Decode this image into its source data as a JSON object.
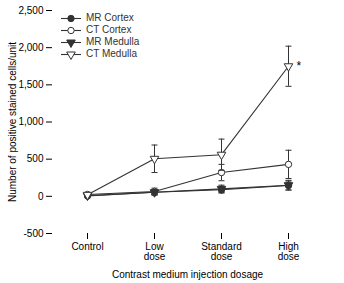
{
  "chart_data": {
    "type": "line",
    "categories": [
      "Control",
      "Low\ndose",
      "Standard\ndose",
      "High\ndose"
    ],
    "series": [
      {
        "name": "MR Cortex",
        "color": "#333333",
        "marker": "circle",
        "line_style": "solid",
        "values": [
          5,
          55,
          90,
          145
        ],
        "yerr": [
          8,
          35,
          45,
          60
        ]
      },
      {
        "name": "CT Cortex",
        "color": "#333333",
        "marker": "circle_open",
        "line_style": "solid",
        "values": [
          25,
          65,
          320,
          430
        ],
        "yerr": [
          12,
          45,
          110,
          190
        ]
      },
      {
        "name": "MR Medulla",
        "color": "#333333",
        "marker": "triangle_down",
        "line_style": "solid",
        "values": [
          10,
          55,
          100,
          150
        ],
        "yerr": [
          8,
          35,
          50,
          65
        ]
      },
      {
        "name": "CT Medulla",
        "color": "#333333",
        "marker": "triangle_down_open",
        "line_style": "solid",
        "values": [
          20,
          505,
          560,
          1750
        ],
        "yerr": [
          12,
          185,
          210,
          270
        ]
      }
    ],
    "xlabel": "Contrast medium injection dosage",
    "ylabel": "Number of positive stained cells/unit",
    "ylim": [
      -500,
      2500
    ],
    "yticks": [
      -500,
      0,
      500,
      {
        "value": 1000,
        "label": "1,000"
      },
      {
        "value": 1500,
        "label": "1,500"
      },
      {
        "value": 2000,
        "label": "2,000"
      },
      {
        "value": 2500,
        "label": "2,500"
      }
    ],
    "annotations": [
      {
        "text": "*",
        "x": "High\ndose",
        "y": 1750
      }
    ],
    "legend": "upper left",
    "grid": false
  }
}
